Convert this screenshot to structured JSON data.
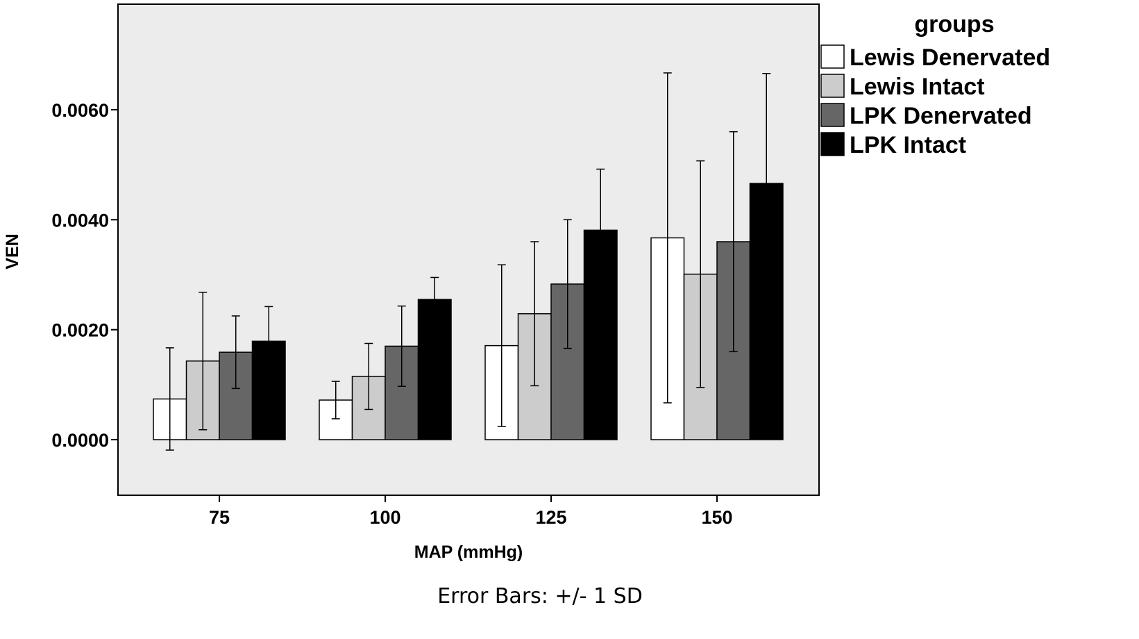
{
  "chart_data": {
    "type": "bar",
    "categories": [
      "75",
      "100",
      "125",
      "150"
    ],
    "xlabel": "MAP (mmHg)",
    "ylabel": "VEN",
    "ylim": [
      -0.001,
      0.0079
    ],
    "yticks": [
      "0.0000",
      "0.0020",
      "0.0040",
      "0.0060"
    ],
    "ytick_values": [
      0,
      0.002,
      0.004,
      0.006
    ],
    "legend_title": "groups",
    "legend_position": "right",
    "footnote": "Error Bars: +/- 1 SD",
    "grid": false,
    "colors": {
      "plot_background": "#ececec"
    },
    "series": [
      {
        "name": "Lewis Denervated",
        "color": "#ffffff",
        "values": [
          0.00074,
          0.00072,
          0.00171,
          0.00367
        ],
        "sd": [
          0.00093,
          0.00034,
          0.00147,
          0.003
        ]
      },
      {
        "name": "Lewis Intact",
        "color": "#cccccc",
        "values": [
          0.00143,
          0.00115,
          0.00229,
          0.00301
        ],
        "sd": [
          0.00125,
          0.0006,
          0.00131,
          0.00206
        ]
      },
      {
        "name": "LPK Denervated",
        "color": "#666666",
        "values": [
          0.00159,
          0.0017,
          0.00283,
          0.0036
        ],
        "sd": [
          0.00066,
          0.00073,
          0.00117,
          0.002
        ]
      },
      {
        "name": "LPK Intact",
        "color": "#000000",
        "values": [
          0.00179,
          0.00255,
          0.00381,
          0.00466
        ],
        "sd": [
          0.00063,
          0.0004,
          0.00111,
          0.002
        ]
      }
    ]
  }
}
